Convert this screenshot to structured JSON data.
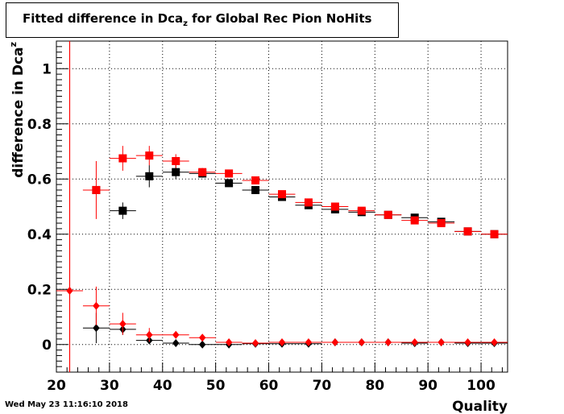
{
  "chart_data": {
    "type": "scatter",
    "title_main": "Fitted difference in Dca",
    "title_sub": "z",
    "title_rest": " for Global Rec Pion NoHits",
    "xlabel": "Quality",
    "ylabel_main": "difference in Dca",
    "ylabel_sub": "z",
    "xlim": [
      20,
      105
    ],
    "ylim": [
      -0.1,
      1.1
    ],
    "x_ticks": [
      20,
      30,
      40,
      50,
      60,
      70,
      80,
      90,
      100
    ],
    "y_ticks": [
      0,
      0.2,
      0.4,
      0.6,
      0.8,
      1
    ],
    "y_tick_labels": [
      "0",
      "0.2",
      "0.4",
      "0.6",
      "0.8",
      "1"
    ],
    "x_tick_labels": [
      "20",
      "30",
      "40",
      "50",
      "60",
      "70",
      "80",
      "90",
      "100"
    ],
    "grid": true,
    "vline_x": 22.5,
    "series": [
      {
        "color": "#000000",
        "marker": "square",
        "points": [
          {
            "x": 27.5,
            "y": 0.56,
            "err": 0.0
          },
          {
            "x": 32.5,
            "y": 0.485,
            "err": 0.03
          },
          {
            "x": 37.5,
            "y": 0.61,
            "err": 0.04
          },
          {
            "x": 42.5,
            "y": 0.625,
            "err": 0.025
          },
          {
            "x": 47.5,
            "y": 0.62,
            "err": 0.015
          },
          {
            "x": 52.5,
            "y": 0.585,
            "err": 0.008
          },
          {
            "x": 57.5,
            "y": 0.56,
            "err": 0.006
          },
          {
            "x": 62.5,
            "y": 0.535,
            "err": 0.005
          },
          {
            "x": 67.5,
            "y": 0.505,
            "err": 0.005
          },
          {
            "x": 72.5,
            "y": 0.49,
            "err": 0.004
          },
          {
            "x": 77.5,
            "y": 0.48,
            "err": 0.004
          },
          {
            "x": 82.5,
            "y": 0.47,
            "err": 0.004
          },
          {
            "x": 87.5,
            "y": 0.46,
            "err": 0.004
          },
          {
            "x": 92.5,
            "y": 0.445,
            "err": 0.004
          },
          {
            "x": 97.5,
            "y": 0.41,
            "err": 0.004
          },
          {
            "x": 102.5,
            "y": 0.4,
            "err": 0.004
          }
        ]
      },
      {
        "color": "#ff0000",
        "marker": "square",
        "points": [
          {
            "x": 27.5,
            "y": 0.56,
            "err": 0.105
          },
          {
            "x": 32.5,
            "y": 0.675,
            "err": 0.045
          },
          {
            "x": 37.5,
            "y": 0.685,
            "err": 0.035
          },
          {
            "x": 42.5,
            "y": 0.665,
            "err": 0.025
          },
          {
            "x": 47.5,
            "y": 0.625,
            "err": 0.015
          },
          {
            "x": 52.5,
            "y": 0.62,
            "err": 0.01
          },
          {
            "x": 57.5,
            "y": 0.595,
            "err": 0.007
          },
          {
            "x": 62.5,
            "y": 0.545,
            "err": 0.006
          },
          {
            "x": 67.5,
            "y": 0.515,
            "err": 0.005
          },
          {
            "x": 72.5,
            "y": 0.5,
            "err": 0.005
          },
          {
            "x": 77.5,
            "y": 0.485,
            "err": 0.004
          },
          {
            "x": 82.5,
            "y": 0.47,
            "err": 0.004
          },
          {
            "x": 87.5,
            "y": 0.45,
            "err": 0.004
          },
          {
            "x": 92.5,
            "y": 0.44,
            "err": 0.004
          },
          {
            "x": 97.5,
            "y": 0.41,
            "err": 0.004
          },
          {
            "x": 102.5,
            "y": 0.4,
            "err": 0.004
          }
        ]
      },
      {
        "color": "#000000",
        "marker": "diamond",
        "points": [
          {
            "x": 27.5,
            "y": 0.06,
            "err": 0.055
          },
          {
            "x": 32.5,
            "y": 0.055,
            "err": 0.02
          },
          {
            "x": 37.5,
            "y": 0.015,
            "err": 0.01
          },
          {
            "x": 42.5,
            "y": 0.005,
            "err": 0.005
          },
          {
            "x": 47.5,
            "y": 0.0,
            "err": 0.004
          },
          {
            "x": 52.5,
            "y": 0.0,
            "err": 0.003
          },
          {
            "x": 57.5,
            "y": 0.003,
            "err": 0.002
          },
          {
            "x": 62.5,
            "y": 0.003,
            "err": 0.002
          },
          {
            "x": 67.5,
            "y": 0.003,
            "err": 0.002
          },
          {
            "x": 72.5,
            "y": 0.008,
            "err": 0.002
          },
          {
            "x": 77.5,
            "y": 0.008,
            "err": 0.002
          },
          {
            "x": 82.5,
            "y": 0.008,
            "err": 0.002
          },
          {
            "x": 87.5,
            "y": 0.005,
            "err": 0.002
          },
          {
            "x": 92.5,
            "y": 0.008,
            "err": 0.002
          },
          {
            "x": 97.5,
            "y": 0.005,
            "err": 0.002
          },
          {
            "x": 102.5,
            "y": 0.005,
            "err": 0.002
          }
        ]
      },
      {
        "color": "#ff0000",
        "marker": "diamond",
        "points": [
          {
            "x": 22.5,
            "y": 0.195,
            "err": 0.0
          },
          {
            "x": 27.5,
            "y": 0.14,
            "err": 0.07
          },
          {
            "x": 32.5,
            "y": 0.075,
            "err": 0.04
          },
          {
            "x": 37.5,
            "y": 0.035,
            "err": 0.025
          },
          {
            "x": 42.5,
            "y": 0.035,
            "err": 0.012
          },
          {
            "x": 47.5,
            "y": 0.025,
            "err": 0.008
          },
          {
            "x": 52.5,
            "y": 0.008,
            "err": 0.005
          },
          {
            "x": 57.5,
            "y": 0.005,
            "err": 0.004
          },
          {
            "x": 62.5,
            "y": 0.008,
            "err": 0.003
          },
          {
            "x": 67.5,
            "y": 0.008,
            "err": 0.003
          },
          {
            "x": 72.5,
            "y": 0.008,
            "err": 0.003
          },
          {
            "x": 77.5,
            "y": 0.008,
            "err": 0.003
          },
          {
            "x": 82.5,
            "y": 0.008,
            "err": 0.003
          },
          {
            "x": 87.5,
            "y": 0.008,
            "err": 0.003
          },
          {
            "x": 92.5,
            "y": 0.008,
            "err": 0.003
          },
          {
            "x": 97.5,
            "y": 0.008,
            "err": 0.003
          },
          {
            "x": 102.5,
            "y": 0.008,
            "err": 0.003
          }
        ]
      }
    ]
  },
  "timestamp": "Wed May 23 11:16:10 2018"
}
